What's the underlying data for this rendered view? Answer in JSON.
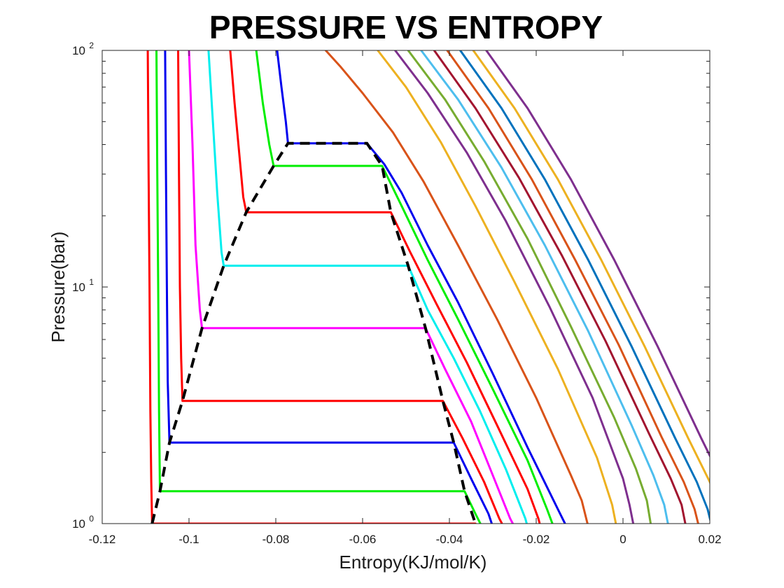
{
  "chart_data": {
    "type": "line",
    "title": "PRESSURE VS ENTROPY",
    "xlabel": "Entropy(KJ/mol/K)",
    "ylabel": "Pressure(bar)",
    "xlim": [
      -0.12,
      0.02
    ],
    "ylim": [
      1,
      100
    ],
    "yscale": "log",
    "grid": false,
    "legend": "none",
    "x_ticks": [
      -0.12,
      -0.1,
      -0.08,
      -0.06,
      -0.04,
      -0.02,
      0,
      0.02
    ],
    "x_tick_labels": [
      "-0.12",
      "-0.1",
      "-0.08",
      "-0.06",
      "-0.04",
      "-0.02",
      "0",
      "0.02"
    ],
    "y_ticks": [
      1,
      10,
      100
    ],
    "y_tick_labels": [
      {
        "base": "10",
        "exp": "0"
      },
      {
        "base": "10",
        "exp": "1"
      },
      {
        "base": "10",
        "exp": "2"
      }
    ],
    "y_minor_ticks": [
      2,
      3,
      4,
      5,
      6,
      7,
      8,
      9,
      20,
      30,
      40,
      50,
      60,
      70,
      80,
      90
    ],
    "series": [
      {
        "color": "#ff0000",
        "points": [
          [
            -0.1095,
            100
          ],
          [
            -0.1093,
            30
          ],
          [
            -0.1091,
            10
          ],
          [
            -0.1089,
            3
          ],
          [
            -0.1087,
            1.5
          ],
          [
            -0.1085,
            1.0
          ],
          [
            -0.034,
            1.0
          ],
          [
            -0.0335,
            0.97
          ]
        ]
      },
      {
        "color": "#00ee00",
        "points": [
          [
            -0.1075,
            100
          ],
          [
            -0.1073,
            30
          ],
          [
            -0.1071,
            10
          ],
          [
            -0.1069,
            3
          ],
          [
            -0.1067,
            1.37
          ],
          [
            -0.0365,
            1.37
          ],
          [
            -0.034,
            1.1
          ],
          [
            -0.0325,
            0.97
          ]
        ]
      },
      {
        "color": "#0000ee",
        "points": [
          [
            -0.1055,
            100
          ],
          [
            -0.1053,
            30
          ],
          [
            -0.1051,
            10
          ],
          [
            -0.1049,
            4
          ],
          [
            -0.1045,
            2.2
          ],
          [
            -0.039,
            2.2
          ],
          [
            -0.035,
            1.55
          ],
          [
            -0.031,
            1.1
          ],
          [
            -0.03,
            0.97
          ]
        ]
      },
      {
        "color": "#ff0000",
        "points": [
          [
            -0.1025,
            100
          ],
          [
            -0.1023,
            30
          ],
          [
            -0.1021,
            10
          ],
          [
            -0.1018,
            5
          ],
          [
            -0.1015,
            3.3
          ],
          [
            -0.0415,
            3.3
          ],
          [
            -0.037,
            2.3
          ],
          [
            -0.032,
            1.5
          ],
          [
            -0.0285,
            1.05
          ],
          [
            -0.0275,
            0.97
          ]
        ]
      },
      {
        "color": "#ff00ff",
        "points": [
          [
            -0.1,
            100
          ],
          [
            -0.0992,
            40
          ],
          [
            -0.0985,
            15
          ],
          [
            -0.0975,
            8
          ],
          [
            -0.097,
            6.7
          ],
          [
            -0.0455,
            6.7
          ],
          [
            -0.041,
            4.5
          ],
          [
            -0.035,
            2.7
          ],
          [
            -0.03,
            1.6
          ],
          [
            -0.026,
            1.05
          ],
          [
            -0.025,
            0.97
          ]
        ]
      },
      {
        "color": "#00eeee",
        "points": [
          [
            -0.0955,
            100
          ],
          [
            -0.0945,
            50
          ],
          [
            -0.0935,
            25
          ],
          [
            -0.0925,
            14
          ],
          [
            -0.092,
            12.3
          ],
          [
            -0.0495,
            12.3
          ],
          [
            -0.045,
            8
          ],
          [
            -0.039,
            5
          ],
          [
            -0.033,
            3
          ],
          [
            -0.027,
            1.7
          ],
          [
            -0.0225,
            1.05
          ],
          [
            -0.022,
            0.97
          ]
        ]
      },
      {
        "color": "#ff0000",
        "points": [
          [
            -0.0905,
            100
          ],
          [
            -0.0895,
            60
          ],
          [
            -0.0885,
            38
          ],
          [
            -0.0875,
            24
          ],
          [
            -0.0868,
            20.7
          ],
          [
            -0.0535,
            20.7
          ],
          [
            -0.049,
            14
          ],
          [
            -0.043,
            8.5
          ],
          [
            -0.036,
            4.8
          ],
          [
            -0.029,
            2.6
          ],
          [
            -0.022,
            1.4
          ],
          [
            -0.0195,
            1.05
          ],
          [
            -0.019,
            0.97
          ]
        ]
      },
      {
        "color": "#00ee00",
        "points": [
          [
            -0.0845,
            100
          ],
          [
            -0.083,
            60
          ],
          [
            -0.0815,
            40
          ],
          [
            -0.0805,
            32.5
          ],
          [
            -0.0555,
            32.5
          ],
          [
            -0.051,
            22
          ],
          [
            -0.045,
            13
          ],
          [
            -0.038,
            7.3
          ],
          [
            -0.03,
            3.7
          ],
          [
            -0.022,
            1.85
          ],
          [
            -0.0175,
            1.15
          ],
          [
            -0.016,
            0.97
          ]
        ]
      },
      {
        "color": "#0000ee",
        "points": [
          [
            -0.0797,
            100
          ],
          [
            -0.0787,
            70
          ],
          [
            -0.0777,
            50
          ],
          [
            -0.0772,
            40.5
          ],
          [
            -0.059,
            40.5
          ],
          [
            -0.055,
            33
          ],
          [
            -0.051,
            25
          ],
          [
            -0.045,
            15
          ],
          [
            -0.038,
            8.6
          ],
          [
            -0.03,
            4.3
          ],
          [
            -0.022,
            2.1
          ],
          [
            -0.015,
            1.15
          ],
          [
            -0.013,
            0.97
          ]
        ]
      },
      {
        "color": "#d95319",
        "points": [
          [
            -0.0685,
            100
          ],
          [
            -0.065,
            85
          ],
          [
            -0.06,
            66
          ],
          [
            -0.053,
            45
          ],
          [
            -0.046,
            28
          ],
          [
            -0.038,
            15
          ],
          [
            -0.029,
            7.3
          ],
          [
            -0.02,
            3.4
          ],
          [
            -0.012,
            1.6
          ],
          [
            -0.0095,
            1.25
          ],
          [
            -0.008,
            0.97
          ]
        ]
      },
      {
        "color": "#edb120",
        "points": [
          [
            -0.0565,
            100
          ],
          [
            -0.05,
            70
          ],
          [
            -0.042,
            41
          ],
          [
            -0.034,
            22
          ],
          [
            -0.025,
            10.5
          ],
          [
            -0.015,
            4.5
          ],
          [
            -0.006,
            1.9
          ],
          [
            -0.0025,
            1.2
          ],
          [
            -0.0015,
            0.97
          ]
        ]
      },
      {
        "color": "#7e2f8e",
        "points": [
          [
            -0.0525,
            100
          ],
          [
            -0.045,
            66
          ],
          [
            -0.036,
            37
          ],
          [
            -0.027,
            19
          ],
          [
            -0.017,
            8.3
          ],
          [
            -0.007,
            3.4
          ],
          [
            0.0,
            1.55
          ],
          [
            0.0015,
            1.2
          ],
          [
            0.0025,
            0.97
          ]
        ]
      },
      {
        "color": "#77ac30",
        "points": [
          [
            -0.0495,
            100
          ],
          [
            -0.041,
            62
          ],
          [
            -0.032,
            34
          ],
          [
            -0.022,
            16
          ],
          [
            -0.012,
            6.8
          ],
          [
            -0.002,
            2.8
          ],
          [
            0.003,
            1.7
          ],
          [
            0.0055,
            1.25
          ],
          [
            0.0065,
            0.97
          ]
        ]
      },
      {
        "color": "#4dbeee",
        "points": [
          [
            -0.0465,
            100
          ],
          [
            -0.038,
            62
          ],
          [
            -0.028,
            32
          ],
          [
            -0.018,
            15
          ],
          [
            -0.008,
            6.5
          ],
          [
            0.002,
            2.6
          ],
          [
            0.007,
            1.6
          ],
          [
            0.0095,
            1.2
          ],
          [
            0.0105,
            0.97
          ]
        ]
      },
      {
        "color": "#a2142f",
        "points": [
          [
            -0.0435,
            100
          ],
          [
            -0.034,
            57
          ],
          [
            -0.024,
            29
          ],
          [
            -0.014,
            13.5
          ],
          [
            -0.004,
            5.9
          ],
          [
            0.006,
            2.4
          ],
          [
            0.011,
            1.55
          ],
          [
            0.0135,
            1.2
          ],
          [
            0.0145,
            0.97
          ]
        ]
      },
      {
        "color": "#d95319",
        "points": [
          [
            -0.0405,
            100
          ],
          [
            -0.031,
            57
          ],
          [
            -0.021,
            28.5
          ],
          [
            -0.011,
            13
          ],
          [
            -0.001,
            5.7
          ],
          [
            0.009,
            2.3
          ],
          [
            0.014,
            1.5
          ],
          [
            0.0165,
            1.15
          ],
          [
            0.0175,
            0.97
          ]
        ]
      },
      {
        "color": "#0072bd",
        "points": [
          [
            -0.0375,
            100
          ],
          [
            -0.028,
            57
          ],
          [
            -0.018,
            28.5
          ],
          [
            -0.008,
            13
          ],
          [
            0.002,
            5.6
          ],
          [
            0.012,
            2.3
          ],
          [
            0.017,
            1.5
          ],
          [
            0.0195,
            1.15
          ],
          [
            0.0205,
            0.97
          ]
        ]
      },
      {
        "color": "#edb120",
        "points": [
          [
            -0.0345,
            100
          ],
          [
            -0.025,
            57
          ],
          [
            -0.015,
            28.5
          ],
          [
            -0.005,
            13
          ],
          [
            0.005,
            5.6
          ],
          [
            0.015,
            2.3
          ],
          [
            0.02,
            1.5
          ],
          [
            0.0225,
            1.15
          ],
          [
            0.0235,
            0.97
          ]
        ]
      },
      {
        "color": "#7e2f8e",
        "points": [
          [
            -0.0315,
            100
          ],
          [
            -0.022,
            57
          ],
          [
            -0.012,
            28.5
          ],
          [
            -0.002,
            13
          ],
          [
            0.008,
            5.6
          ],
          [
            0.018,
            2.3
          ],
          [
            0.023,
            1.5
          ],
          [
            0.0255,
            1.15
          ],
          [
            0.0265,
            0.97
          ]
        ]
      }
    ],
    "dome": {
      "color": "#000000",
      "dash": true,
      "points": [
        [
          -0.1085,
          1.0
        ],
        [
          -0.1067,
          1.37
        ],
        [
          -0.1045,
          2.2
        ],
        [
          -0.1015,
          3.3
        ],
        [
          -0.097,
          6.7
        ],
        [
          -0.092,
          12.3
        ],
        [
          -0.0868,
          20.7
        ],
        [
          -0.0805,
          32.5
        ],
        [
          -0.0772,
          40.5
        ],
        [
          -0.059,
          40.5
        ],
        [
          -0.0555,
          32.5
        ],
        [
          -0.0535,
          20.7
        ],
        [
          -0.0495,
          12.3
        ],
        [
          -0.0455,
          6.7
        ],
        [
          -0.0415,
          3.3
        ],
        [
          -0.039,
          2.2
        ],
        [
          -0.0365,
          1.37
        ],
        [
          -0.034,
          1.0
        ]
      ]
    }
  }
}
